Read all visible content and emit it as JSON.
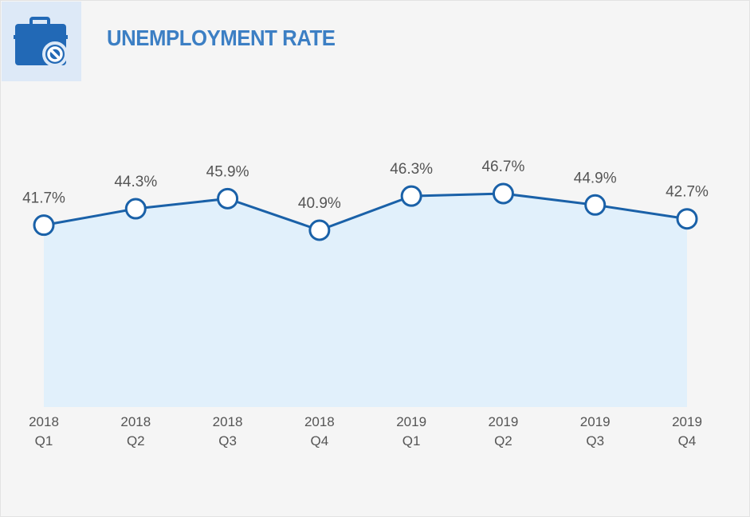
{
  "header": {
    "icon": "briefcase-no-icon",
    "title": "UNEMPLOYMENT RATE"
  },
  "colors": {
    "line": "#1a61a8",
    "area": "#e1f0fb",
    "title": "#3c7fc4",
    "icon": "#2269b6"
  },
  "chart_data": {
    "type": "area",
    "categories": [
      [
        "2018",
        "Q1"
      ],
      [
        "2018",
        "Q2"
      ],
      [
        "2018",
        "Q3"
      ],
      [
        "2018",
        "Q4"
      ],
      [
        "2019",
        "Q1"
      ],
      [
        "2019",
        "Q2"
      ],
      [
        "2019",
        "Q3"
      ],
      [
        "2019",
        "Q4"
      ]
    ],
    "values": [
      41.7,
      44.3,
      45.9,
      40.9,
      46.3,
      46.7,
      44.9,
      42.7
    ],
    "value_labels": [
      "41.7%",
      "44.3%",
      "45.9%",
      "40.9%",
      "46.3%",
      "46.7%",
      "44.9%",
      "42.7%"
    ],
    "title": "UNEMPLOYMENT RATE",
    "xlabel": "",
    "ylabel": "",
    "grid": false,
    "legend": "none"
  }
}
